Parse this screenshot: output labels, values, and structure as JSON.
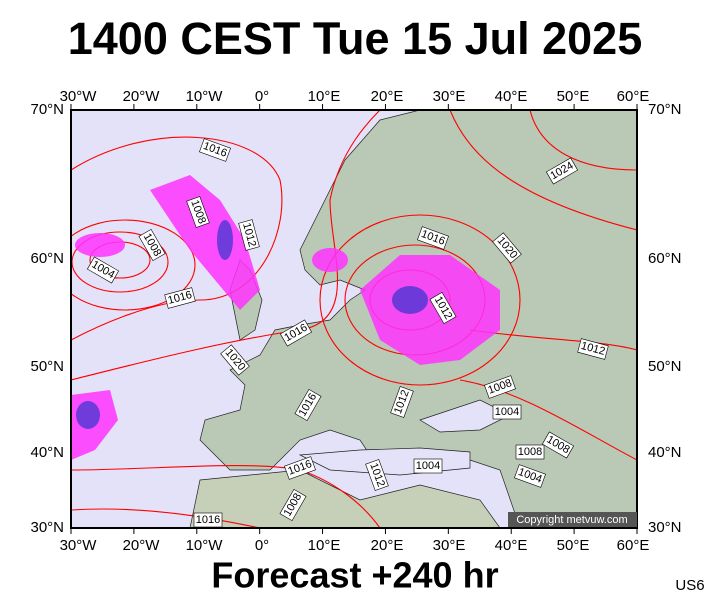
{
  "header": {
    "title": "1400 CEST Tue 15 Jul 2025"
  },
  "lon_labels": [
    "30°W",
    "20°W",
    "10°W",
    "0°",
    "10°E",
    "20°E",
    "30°E",
    "40°E",
    "50°E",
    "60°E"
  ],
  "lat_labels": [
    "70°N",
    "60°N",
    "50°N",
    "40°N",
    "30°N"
  ],
  "isobar_labels": [
    "1016",
    "1008",
    "1012",
    "1008",
    "1004",
    "1016",
    "1016",
    "1020",
    "1016",
    "1016",
    "1016",
    "1008",
    "1012",
    "1004",
    "1012",
    "1008",
    "1004",
    "1008",
    "1008",
    "1004",
    "1012",
    "1020",
    "1016",
    "1024",
    "1012"
  ],
  "copyright": "Copyright metvuw.com",
  "footer": {
    "forecast": "Forecast +240 hr",
    "code": "US6"
  }
}
